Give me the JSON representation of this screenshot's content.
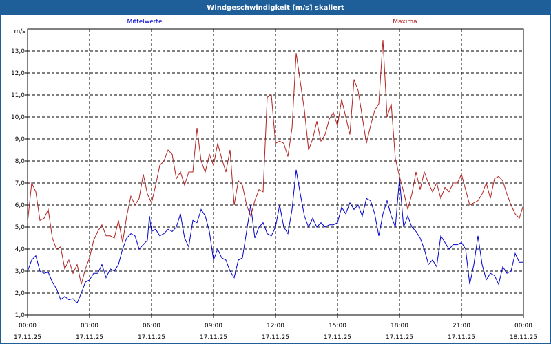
{
  "window": {
    "title": "Windgeschwindigkeit [m/s] skaliert"
  },
  "chart_data": {
    "type": "line",
    "title": "Windgeschwindigkeit [m/s] skaliert",
    "ylabel": "m/s",
    "ylim": [
      1.0,
      14.0
    ],
    "xlim": [
      0,
      24
    ],
    "y_ticks": [
      "1,0",
      "2,0",
      "3,0",
      "4,0",
      "5,0",
      "6,0",
      "7,0",
      "8,0",
      "9,0",
      "10,0",
      "11,0",
      "12,0",
      "13,0"
    ],
    "x_ticks": [
      {
        "time": "00:00",
        "date": "17.11.25"
      },
      {
        "time": "03:00",
        "date": "17.11.25"
      },
      {
        "time": "06:00",
        "date": "17.11.25"
      },
      {
        "time": "09:00",
        "date": "17.11.25"
      },
      {
        "time": "12:00",
        "date": "17.11.25"
      },
      {
        "time": "15:00",
        "date": "17.11.25"
      },
      {
        "time": "18:00",
        "date": "17.11.25"
      },
      {
        "time": "21:00",
        "date": "17.11.25"
      },
      {
        "time": "00:00",
        "date": "18.11.25"
      }
    ],
    "series": [
      {
        "name": "Mittelwerte",
        "color": "#0000cc",
        "points": [
          [
            0,
            3.0
          ],
          [
            0.2,
            3.5
          ],
          [
            0.4,
            3.7
          ],
          [
            0.6,
            3.0
          ],
          [
            0.8,
            2.9
          ],
          [
            1.0,
            2.95
          ],
          [
            1.2,
            2.5
          ],
          [
            1.4,
            2.2
          ],
          [
            1.6,
            1.7
          ],
          [
            1.8,
            1.85
          ],
          [
            2.0,
            1.7
          ],
          [
            2.2,
            1.75
          ],
          [
            2.4,
            1.55
          ],
          [
            2.6,
            2.0
          ],
          [
            2.8,
            2.5
          ],
          [
            3.0,
            2.6
          ],
          [
            3.2,
            2.9
          ],
          [
            3.4,
            2.9
          ],
          [
            3.6,
            3.3
          ],
          [
            3.8,
            2.7
          ],
          [
            4.0,
            3.1
          ],
          [
            4.2,
            3.0
          ],
          [
            4.4,
            3.3
          ],
          [
            4.6,
            4.0
          ],
          [
            4.8,
            4.5
          ],
          [
            5.0,
            4.7
          ],
          [
            5.2,
            4.6
          ],
          [
            5.4,
            4.0
          ],
          [
            5.6,
            4.2
          ],
          [
            5.8,
            4.4
          ],
          [
            5.9,
            5.5
          ],
          [
            6.0,
            4.8
          ],
          [
            6.2,
            4.9
          ],
          [
            6.4,
            4.6
          ],
          [
            6.6,
            4.7
          ],
          [
            6.8,
            4.9
          ],
          [
            7.0,
            4.8
          ],
          [
            7.2,
            5.0
          ],
          [
            7.4,
            5.6
          ],
          [
            7.6,
            4.5
          ],
          [
            7.8,
            4.1
          ],
          [
            8.0,
            5.3
          ],
          [
            8.2,
            5.2
          ],
          [
            8.4,
            5.8
          ],
          [
            8.6,
            5.5
          ],
          [
            8.8,
            4.8
          ],
          [
            9.0,
            3.5
          ],
          [
            9.2,
            4.0
          ],
          [
            9.4,
            3.6
          ],
          [
            9.6,
            3.5
          ],
          [
            9.8,
            3.0
          ],
          [
            10.0,
            2.7
          ],
          [
            10.2,
            3.5
          ],
          [
            10.4,
            3.6
          ],
          [
            10.6,
            4.8
          ],
          [
            10.8,
            6.0
          ],
          [
            11.0,
            4.5
          ],
          [
            11.2,
            5.0
          ],
          [
            11.4,
            5.2
          ],
          [
            11.6,
            4.7
          ],
          [
            11.8,
            4.6
          ],
          [
            12.0,
            5.0
          ],
          [
            12.2,
            6.0
          ],
          [
            12.4,
            5.0
          ],
          [
            12.6,
            4.7
          ],
          [
            12.8,
            5.8
          ],
          [
            13.0,
            7.6
          ],
          [
            13.2,
            6.5
          ],
          [
            13.4,
            5.5
          ],
          [
            13.6,
            5.0
          ],
          [
            13.8,
            5.4
          ],
          [
            14.0,
            5.0
          ],
          [
            14.2,
            5.2
          ],
          [
            14.4,
            5.0
          ],
          [
            14.6,
            5.1
          ],
          [
            14.8,
            5.1
          ],
          [
            15.0,
            5.2
          ],
          [
            15.2,
            5.9
          ],
          [
            15.4,
            5.6
          ],
          [
            15.6,
            6.1
          ],
          [
            15.8,
            5.8
          ],
          [
            16.0,
            6.0
          ],
          [
            16.2,
            5.5
          ],
          [
            16.4,
            6.3
          ],
          [
            16.6,
            6.2
          ],
          [
            16.8,
            5.6
          ],
          [
            17.0,
            4.6
          ],
          [
            17.2,
            5.6
          ],
          [
            17.4,
            6.2
          ],
          [
            17.6,
            5.5
          ],
          [
            17.8,
            5.0
          ],
          [
            18.0,
            7.2
          ],
          [
            18.2,
            5.0
          ],
          [
            18.4,
            5.5
          ],
          [
            18.6,
            5.0
          ],
          [
            18.8,
            4.8
          ],
          [
            19.0,
            4.5
          ],
          [
            19.2,
            4.0
          ],
          [
            19.4,
            3.3
          ],
          [
            19.6,
            3.5
          ],
          [
            19.8,
            3.2
          ],
          [
            20.0,
            4.6
          ],
          [
            20.2,
            4.3
          ],
          [
            20.4,
            4.0
          ],
          [
            20.6,
            4.2
          ],
          [
            20.8,
            4.2
          ],
          [
            21.0,
            4.3
          ],
          [
            21.2,
            4.0
          ],
          [
            21.4,
            2.4
          ],
          [
            21.6,
            3.3
          ],
          [
            21.8,
            4.6
          ],
          [
            22.0,
            3.3
          ],
          [
            22.2,
            2.6
          ],
          [
            22.4,
            2.9
          ],
          [
            22.6,
            2.8
          ],
          [
            22.8,
            2.4
          ],
          [
            23.0,
            3.2
          ],
          [
            23.2,
            2.9
          ],
          [
            23.4,
            3.0
          ],
          [
            23.6,
            3.8
          ],
          [
            23.8,
            3.4
          ],
          [
            24.0,
            3.4
          ]
        ]
      },
      {
        "name": "Maxima",
        "color": "#b22222",
        "points": [
          [
            0,
            5.2
          ],
          [
            0.2,
            7.0
          ],
          [
            0.4,
            6.6
          ],
          [
            0.6,
            5.3
          ],
          [
            0.8,
            5.4
          ],
          [
            1.0,
            5.8
          ],
          [
            1.2,
            4.5
          ],
          [
            1.4,
            4.0
          ],
          [
            1.6,
            4.1
          ],
          [
            1.8,
            3.1
          ],
          [
            2.0,
            3.5
          ],
          [
            2.2,
            2.9
          ],
          [
            2.4,
            3.3
          ],
          [
            2.6,
            2.4
          ],
          [
            2.8,
            3.1
          ],
          [
            3.0,
            3.6
          ],
          [
            3.2,
            4.4
          ],
          [
            3.4,
            4.8
          ],
          [
            3.6,
            5.1
          ],
          [
            3.8,
            4.6
          ],
          [
            4.0,
            4.6
          ],
          [
            4.2,
            4.5
          ],
          [
            4.4,
            5.3
          ],
          [
            4.6,
            4.3
          ],
          [
            4.8,
            5.5
          ],
          [
            5.0,
            6.4
          ],
          [
            5.2,
            6.0
          ],
          [
            5.4,
            6.3
          ],
          [
            5.6,
            7.4
          ],
          [
            5.8,
            6.5
          ],
          [
            6.0,
            6.1
          ],
          [
            6.2,
            6.9
          ],
          [
            6.4,
            7.8
          ],
          [
            6.6,
            8.0
          ],
          [
            6.8,
            8.5
          ],
          [
            7.0,
            8.3
          ],
          [
            7.2,
            7.2
          ],
          [
            7.4,
            7.5
          ],
          [
            7.6,
            6.9
          ],
          [
            7.8,
            7.5
          ],
          [
            8.0,
            7.5
          ],
          [
            8.2,
            9.5
          ],
          [
            8.4,
            8.0
          ],
          [
            8.6,
            7.5
          ],
          [
            8.8,
            8.3
          ],
          [
            9.0,
            7.8
          ],
          [
            9.2,
            8.8
          ],
          [
            9.4,
            8.1
          ],
          [
            9.6,
            7.5
          ],
          [
            9.8,
            8.5
          ],
          [
            10.0,
            6.0
          ],
          [
            10.2,
            7.1
          ],
          [
            10.4,
            6.9
          ],
          [
            10.6,
            6.0
          ],
          [
            10.8,
            5.5
          ],
          [
            11.0,
            6.2
          ],
          [
            11.2,
            6.7
          ],
          [
            11.4,
            6.6
          ],
          [
            11.6,
            10.9
          ],
          [
            11.8,
            11.0
          ],
          [
            12.0,
            8.8
          ],
          [
            12.2,
            8.9
          ],
          [
            12.4,
            8.8
          ],
          [
            12.6,
            8.2
          ],
          [
            12.8,
            9.5
          ],
          [
            13.0,
            12.9
          ],
          [
            13.2,
            11.6
          ],
          [
            13.4,
            10.3
          ],
          [
            13.6,
            8.5
          ],
          [
            13.8,
            9.0
          ],
          [
            14.0,
            9.8
          ],
          [
            14.2,
            8.9
          ],
          [
            14.4,
            9.2
          ],
          [
            14.6,
            9.9
          ],
          [
            14.8,
            10.2
          ],
          [
            15.0,
            9.6
          ],
          [
            15.2,
            10.8
          ],
          [
            15.4,
            10.0
          ],
          [
            15.6,
            9.2
          ],
          [
            15.8,
            11.7
          ],
          [
            16.0,
            11.2
          ],
          [
            16.2,
            10.0
          ],
          [
            16.4,
            8.8
          ],
          [
            16.6,
            9.6
          ],
          [
            16.8,
            10.3
          ],
          [
            17.0,
            10.6
          ],
          [
            17.2,
            13.5
          ],
          [
            17.4,
            10.0
          ],
          [
            17.6,
            10.6
          ],
          [
            17.8,
            8.1
          ],
          [
            18.0,
            7.3
          ],
          [
            18.2,
            6.6
          ],
          [
            18.4,
            5.8
          ],
          [
            18.6,
            6.5
          ],
          [
            18.8,
            7.5
          ],
          [
            19.0,
            6.7
          ],
          [
            19.2,
            7.5
          ],
          [
            19.4,
            7.0
          ],
          [
            19.6,
            6.6
          ],
          [
            19.8,
            7.0
          ],
          [
            20.0,
            6.3
          ],
          [
            20.2,
            6.8
          ],
          [
            20.4,
            6.6
          ],
          [
            20.6,
            7.0
          ],
          [
            20.8,
            7.0
          ],
          [
            21.0,
            7.4
          ],
          [
            21.2,
            6.7
          ],
          [
            21.4,
            6.0
          ],
          [
            21.6,
            6.1
          ],
          [
            21.8,
            6.2
          ],
          [
            22.0,
            6.5
          ],
          [
            22.2,
            7.0
          ],
          [
            22.4,
            6.3
          ],
          [
            22.6,
            7.2
          ],
          [
            22.8,
            7.3
          ],
          [
            23.0,
            7.1
          ],
          [
            23.2,
            6.5
          ],
          [
            23.4,
            6.0
          ],
          [
            23.6,
            5.6
          ],
          [
            23.8,
            5.4
          ],
          [
            24.0,
            6.0
          ]
        ]
      }
    ],
    "grid": "dashed"
  }
}
